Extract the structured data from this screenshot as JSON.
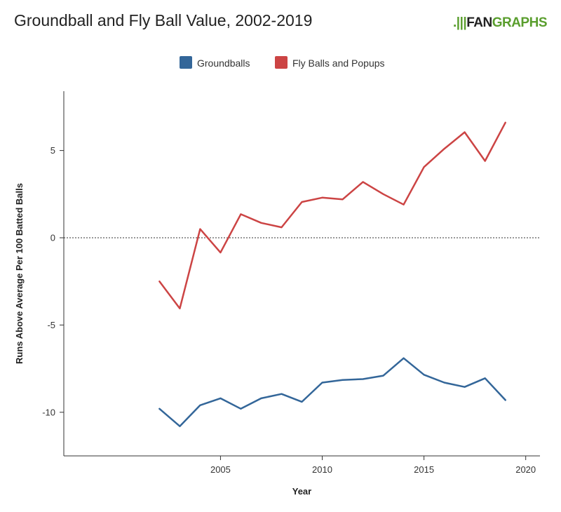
{
  "header": {
    "title": "Groundball and Fly Ball Value, 2002-2019",
    "brand_mark": ".|||",
    "brand_fan": "FAN",
    "brand_graphs": "GRAPHS"
  },
  "chart_data": {
    "type": "line",
    "title": "Groundball and Fly Ball Value, 2002-2019",
    "xlabel": "Year",
    "ylabel": "Runs Above Average Per 100 Batted Balls",
    "xlim": [
      1997.3,
      2020.7
    ],
    "ylim": [
      -12.5,
      8.4
    ],
    "xticks": [
      2005,
      2010,
      2015,
      2020
    ],
    "yticks": [
      5,
      0,
      -5,
      -10
    ],
    "reference_line": 0,
    "legend_position": "top-center",
    "x": [
      2002,
      2003,
      2004,
      2005,
      2006,
      2007,
      2008,
      2009,
      2010,
      2011,
      2012,
      2013,
      2014,
      2015,
      2016,
      2017,
      2018,
      2019
    ],
    "series": [
      {
        "name": "Groundballs",
        "color": "#336699",
        "values": [
          -9.8,
          -10.8,
          -9.6,
          -9.2,
          -9.8,
          -9.2,
          -8.95,
          -9.4,
          -8.3,
          -8.15,
          -8.1,
          -7.9,
          -6.9,
          -7.85,
          -8.3,
          -8.55,
          -8.05,
          -9.3
        ]
      },
      {
        "name": "Fly Balls and Popups",
        "color": "#cc4444",
        "values": [
          -2.5,
          -4.05,
          0.5,
          -0.85,
          1.35,
          0.85,
          0.6,
          2.05,
          2.3,
          2.2,
          3.2,
          2.5,
          1.9,
          4.05,
          5.1,
          6.05,
          4.4,
          6.6
        ]
      }
    ]
  }
}
